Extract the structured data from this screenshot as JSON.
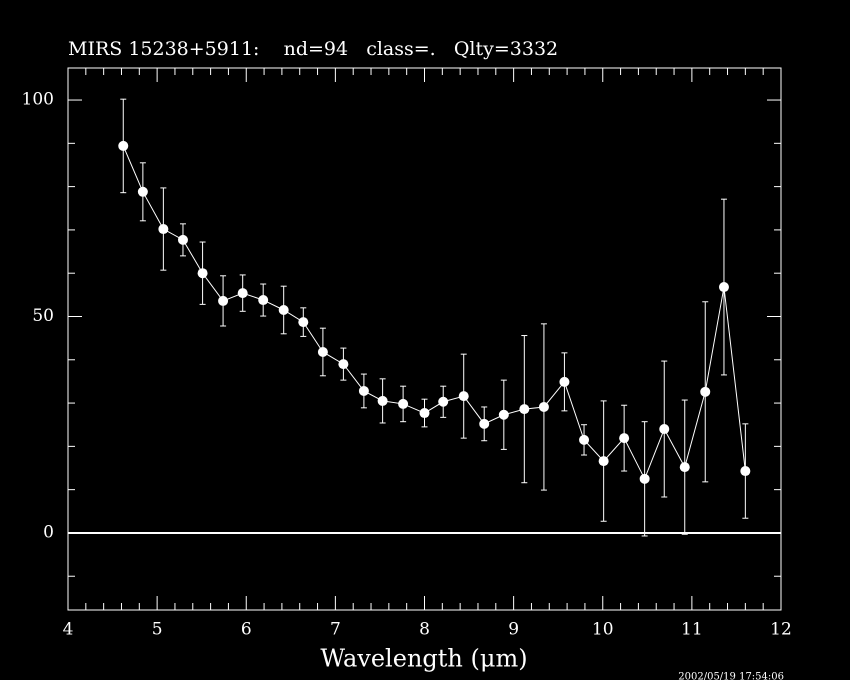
{
  "chart_data": {
    "type": "errorbar-line",
    "title": "MIRS 15238+5911:    nd=94   class=.   Qlty=3332",
    "x_label": "Wavelength (μm)",
    "timestamp": "2002/05/19 17:54:06",
    "color": "#ffffff",
    "xlim": [
      4,
      12
    ],
    "ylim": [
      -17.8,
      107.4
    ],
    "xticks": [
      4,
      5,
      6,
      7,
      8,
      9,
      10,
      11,
      12
    ],
    "yticks": [
      0,
      50,
      100
    ],
    "xminorticks": [
      4.2,
      4.4,
      4.6,
      4.8,
      5.2,
      5.4,
      5.6,
      5.8,
      6.2,
      6.4,
      6.6,
      6.8,
      7.2,
      7.4,
      7.6,
      7.8,
      8.2,
      8.4,
      8.6,
      8.8,
      9.2,
      9.4,
      9.6,
      9.8,
      10.2,
      10.4,
      10.6,
      10.8,
      11.2,
      11.4,
      11.6,
      11.8
    ],
    "yminorticks": [
      -10,
      10,
      20,
      30,
      40,
      60,
      70,
      80,
      90
    ],
    "hline": 0,
    "series": [
      {
        "x": [
          4.62,
          4.84,
          5.07,
          5.29,
          5.51,
          5.74,
          5.96,
          6.19,
          6.42,
          6.64,
          6.86,
          7.09,
          7.32,
          7.53,
          7.76,
          8.0,
          8.21,
          8.44,
          8.67,
          8.89,
          9.12,
          9.34,
          9.57,
          9.79,
          10.01,
          10.24,
          10.47,
          10.69,
          10.92,
          11.15,
          11.36,
          11.6
        ],
        "values": [
          89.4,
          78.8,
          70.2,
          67.7,
          60.0,
          53.6,
          55.4,
          53.8,
          51.5,
          48.7,
          41.8,
          39.0,
          32.8,
          30.5,
          29.8,
          27.7,
          30.3,
          31.6,
          25.2,
          27.3,
          28.6,
          29.1,
          34.9,
          21.5,
          16.6,
          21.9,
          12.5,
          24.0,
          15.2,
          32.6,
          56.8,
          14.3
        ],
        "errors": [
          10.8,
          6.7,
          9.5,
          3.7,
          7.2,
          5.8,
          4.2,
          3.7,
          5.5,
          3.3,
          5.5,
          3.7,
          3.9,
          5.1,
          4.1,
          3.2,
          3.6,
          9.7,
          3.9,
          8.0,
          17.0,
          19.2,
          6.7,
          3.5,
          13.9,
          7.6,
          13.2,
          15.7,
          15.5,
          20.8,
          20.3,
          10.9
        ]
      }
    ]
  }
}
